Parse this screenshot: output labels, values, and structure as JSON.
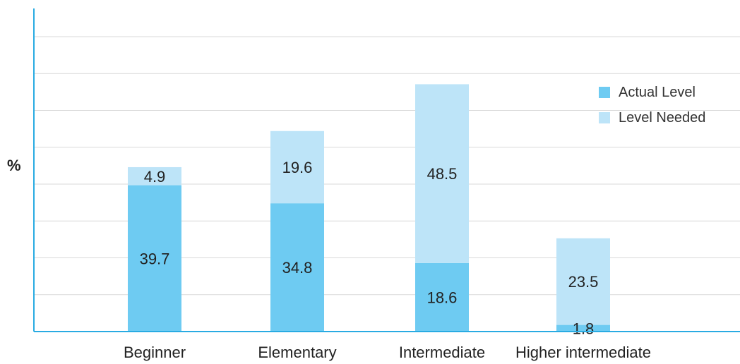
{
  "chart_data": {
    "type": "bar",
    "stacked": true,
    "categories": [
      "Beginner",
      "Elementary",
      "Intermediate",
      "Higher intermediate"
    ],
    "series": [
      {
        "name": "Actual Level",
        "values": [
          39.7,
          34.8,
          18.6,
          1.8
        ],
        "color": "#6ECBF2"
      },
      {
        "name": "Level Needed",
        "values": [
          4.9,
          19.6,
          48.5,
          23.5
        ],
        "color": "#BDE4F8"
      }
    ],
    "ylabel": "%",
    "ylim": [
      0,
      80
    ],
    "grid": true,
    "legend_position": "top-right",
    "axis_color": "#29ABE2",
    "grid_color": "#D9D9D9"
  }
}
